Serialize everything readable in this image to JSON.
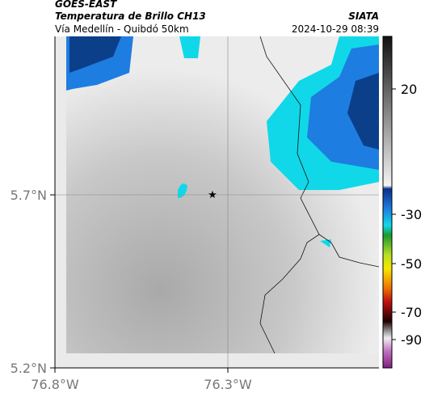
{
  "header": {
    "source": "GOES-EAST",
    "title": "Temperatura de Brillo CH13",
    "subtitle": "Vía Medellín - Quibdó 50km",
    "agency": "SIATA",
    "timestamp": "2024-10-29 08:39"
  },
  "map": {
    "lat_labels": [
      "5.7°N",
      "5.2°N"
    ],
    "lon_labels": [
      "76.8°W",
      "76.3°W"
    ]
  },
  "colorbar": {
    "ticks": [
      "20",
      "-30",
      "-50",
      "-70",
      "-90"
    ]
  }
}
